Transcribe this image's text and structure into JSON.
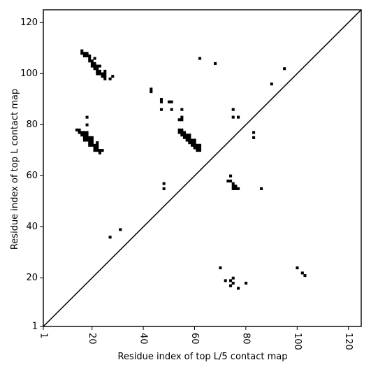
{
  "chart_data": {
    "type": "scatter",
    "title": "",
    "xlabel": "Residue index of top L/5 contact map",
    "ylabel": "Residue index of top L contact map",
    "xlim": [
      1,
      125
    ],
    "ylim": [
      1,
      125
    ],
    "xticks": [
      1,
      20,
      40,
      60,
      80,
      100,
      120
    ],
    "yticks": [
      1,
      20,
      40,
      60,
      80,
      100,
      120
    ],
    "xtick_labels": [
      "1",
      "20",
      "40",
      "60",
      "80",
      "100",
      "120"
    ],
    "ytick_labels": [
      "1",
      "20",
      "40",
      "60",
      "80",
      "100",
      "120"
    ],
    "grid": false,
    "legend": "none",
    "diagonal": true,
    "marker": "square",
    "color": "#000000",
    "series": [
      {
        "points": [
          [
            16,
            108
          ],
          [
            16,
            109
          ],
          [
            17,
            107
          ],
          [
            17,
            108
          ],
          [
            18,
            107
          ],
          [
            18,
            108
          ],
          [
            19,
            105
          ],
          [
            19,
            106
          ],
          [
            19,
            107
          ],
          [
            20,
            103
          ],
          [
            20,
            104
          ],
          [
            20,
            105
          ],
          [
            21,
            102
          ],
          [
            21,
            103
          ],
          [
            21,
            104
          ],
          [
            21,
            106
          ],
          [
            22,
            100
          ],
          [
            22,
            101
          ],
          [
            22,
            102
          ],
          [
            22,
            103
          ],
          [
            23,
            100
          ],
          [
            23,
            101
          ],
          [
            23,
            103
          ],
          [
            24,
            99
          ],
          [
            24,
            100
          ],
          [
            25,
            98
          ],
          [
            25,
            99
          ],
          [
            25,
            100
          ],
          [
            25,
            101
          ],
          [
            27,
            98
          ],
          [
            28,
            99
          ],
          [
            15,
            77
          ],
          [
            15,
            78
          ],
          [
            16,
            76
          ],
          [
            16,
            77
          ],
          [
            17,
            74
          ],
          [
            17,
            75
          ],
          [
            17,
            76
          ],
          [
            17,
            77
          ],
          [
            18,
            74
          ],
          [
            18,
            75
          ],
          [
            18,
            76
          ],
          [
            18,
            77
          ],
          [
            19,
            72
          ],
          [
            19,
            73
          ],
          [
            19,
            74
          ],
          [
            19,
            75
          ],
          [
            20,
            72
          ],
          [
            20,
            73
          ],
          [
            20,
            74
          ],
          [
            20,
            75
          ],
          [
            21,
            70
          ],
          [
            21,
            71
          ],
          [
            21,
            72
          ],
          [
            22,
            70
          ],
          [
            22,
            71
          ],
          [
            22,
            72
          ],
          [
            22,
            73
          ],
          [
            23,
            69
          ],
          [
            23,
            70
          ],
          [
            24,
            70
          ],
          [
            14,
            78
          ],
          [
            18,
            80
          ],
          [
            18,
            83
          ],
          [
            43,
            93
          ],
          [
            43,
            94
          ],
          [
            47,
            89
          ],
          [
            47,
            90
          ],
          [
            47,
            86
          ],
          [
            50,
            89
          ],
          [
            51,
            89
          ],
          [
            51,
            86
          ],
          [
            54,
            82
          ],
          [
            55,
            82
          ],
          [
            55,
            83
          ],
          [
            55,
            86
          ],
          [
            54,
            77
          ],
          [
            54,
            78
          ],
          [
            55,
            76
          ],
          [
            55,
            77
          ],
          [
            55,
            78
          ],
          [
            56,
            75
          ],
          [
            56,
            76
          ],
          [
            56,
            77
          ],
          [
            57,
            74
          ],
          [
            57,
            75
          ],
          [
            57,
            76
          ],
          [
            58,
            73
          ],
          [
            58,
            74
          ],
          [
            58,
            75
          ],
          [
            58,
            76
          ],
          [
            59,
            72
          ],
          [
            59,
            73
          ],
          [
            59,
            74
          ],
          [
            60,
            71
          ],
          [
            60,
            72
          ],
          [
            60,
            73
          ],
          [
            60,
            74
          ],
          [
            61,
            70
          ],
          [
            61,
            71
          ],
          [
            61,
            72
          ],
          [
            62,
            70
          ],
          [
            62,
            71
          ],
          [
            62,
            72
          ],
          [
            62,
            106
          ],
          [
            68,
            104
          ],
          [
            95,
            102
          ],
          [
            90,
            96
          ],
          [
            75,
            86
          ],
          [
            75,
            83
          ],
          [
            77,
            83
          ],
          [
            83,
            77
          ],
          [
            83,
            75
          ],
          [
            74,
            60
          ],
          [
            73,
            58
          ],
          [
            74,
            58
          ],
          [
            75,
            57
          ],
          [
            75,
            56
          ],
          [
            76,
            56
          ],
          [
            75,
            55
          ],
          [
            76,
            55
          ],
          [
            77,
            55
          ],
          [
            86,
            55
          ],
          [
            48,
            57
          ],
          [
            48,
            55
          ],
          [
            31,
            39
          ],
          [
            27,
            36
          ],
          [
            70,
            24
          ],
          [
            72,
            19
          ],
          [
            74,
            19
          ],
          [
            75,
            20
          ],
          [
            75,
            18
          ],
          [
            74,
            17
          ],
          [
            77,
            16
          ],
          [
            80,
            18
          ],
          [
            100,
            24
          ],
          [
            102,
            22
          ],
          [
            103,
            21
          ]
        ]
      }
    ]
  }
}
